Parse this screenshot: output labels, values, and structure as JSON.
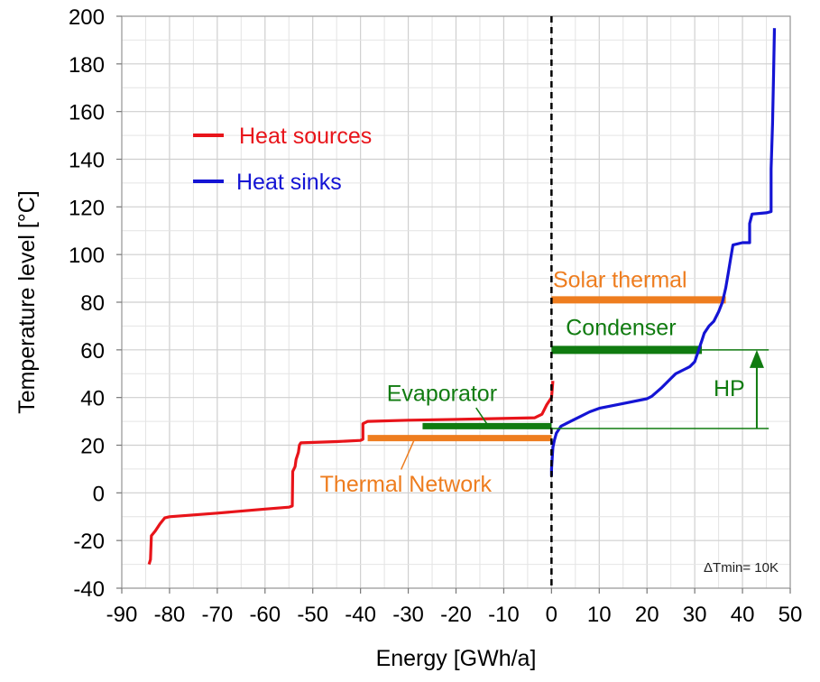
{
  "chart_data": {
    "type": "line",
    "xlabel": "Energy [GWh/a]",
    "ylabel": "Temperature level [°C]",
    "xlim": [
      -90,
      50
    ],
    "ylim": [
      -40,
      200
    ],
    "x_ticks": [
      -90,
      -80,
      -70,
      -60,
      -50,
      -40,
      -30,
      -20,
      -10,
      0,
      10,
      20,
      30,
      40,
      50
    ],
    "y_ticks": [
      -40,
      -20,
      0,
      20,
      40,
      60,
      80,
      100,
      120,
      140,
      160,
      180,
      200
    ],
    "x_tick_labels": [
      "-90",
      "-80",
      "-70",
      "-60",
      "-50",
      "-40",
      "-30",
      "-20",
      "-10",
      "0",
      "10",
      "20",
      "30",
      "40",
      "50"
    ],
    "y_tick_labels": [
      "-40",
      "-20",
      "0",
      "20",
      "40",
      "60",
      "80",
      "100",
      "120",
      "140",
      "160",
      "180",
      "200"
    ],
    "grid": true,
    "legend_position": "top-left",
    "series": [
      {
        "name": "Heat sources",
        "color": "#e8141a",
        "points": [
          [
            -84.3,
            -30
          ],
          [
            -84,
            -28
          ],
          [
            -83.8,
            -18
          ],
          [
            -83,
            -16
          ],
          [
            -82,
            -13
          ],
          [
            -81,
            -10.5
          ],
          [
            -80,
            -10
          ],
          [
            -70,
            -8.5
          ],
          [
            -60,
            -6.8
          ],
          [
            -55,
            -6
          ],
          [
            -54.3,
            -5.5
          ],
          [
            -54.2,
            9
          ],
          [
            -53.7,
            11
          ],
          [
            -53.5,
            14
          ],
          [
            -53,
            17
          ],
          [
            -52.8,
            20
          ],
          [
            -52.5,
            21
          ],
          [
            -45,
            21.5
          ],
          [
            -40,
            22
          ],
          [
            -39.5,
            22.5
          ],
          [
            -39.5,
            29
          ],
          [
            -38.5,
            30
          ],
          [
            -30,
            30.5
          ],
          [
            -15,
            31
          ],
          [
            -3.5,
            31.5
          ],
          [
            -2,
            33
          ],
          [
            -1,
            37
          ],
          [
            0,
            40
          ],
          [
            0.3,
            47
          ]
        ]
      },
      {
        "name": "Heat sinks",
        "color": "#1414d4",
        "points": [
          [
            0,
            7
          ],
          [
            0,
            10
          ],
          [
            0.3,
            19
          ],
          [
            0.6,
            22
          ],
          [
            1,
            25
          ],
          [
            2,
            28
          ],
          [
            4,
            30
          ],
          [
            6,
            32
          ],
          [
            8,
            34
          ],
          [
            10,
            35.5
          ],
          [
            15,
            37.5
          ],
          [
            20,
            39.5
          ],
          [
            21,
            40.5
          ],
          [
            23,
            44
          ],
          [
            25,
            48
          ],
          [
            26,
            50
          ],
          [
            28,
            52
          ],
          [
            29,
            53
          ],
          [
            30,
            55
          ],
          [
            30.5,
            58
          ],
          [
            31,
            61
          ],
          [
            31.5,
            64
          ],
          [
            32,
            67
          ],
          [
            33,
            70
          ],
          [
            34,
            72
          ],
          [
            35,
            76
          ],
          [
            35.8,
            80
          ],
          [
            36.5,
            86
          ],
          [
            37,
            92
          ],
          [
            37.5,
            98
          ],
          [
            38,
            104
          ],
          [
            40,
            105
          ],
          [
            41.5,
            105
          ],
          [
            41.5,
            113
          ],
          [
            42,
            117
          ],
          [
            45,
            117.5
          ],
          [
            46,
            118
          ],
          [
            46,
            136
          ],
          [
            46.3,
            155
          ],
          [
            46.5,
            175
          ],
          [
            46.7,
            195
          ]
        ]
      }
    ],
    "legend": [
      {
        "name": "Heat sources",
        "color": "#e8141a"
      },
      {
        "name": "Heat sinks",
        "color": "#1414d4"
      }
    ],
    "bars": [
      {
        "label": "Solar thermal",
        "color": "#ee7d1f",
        "x0": 0,
        "x1": 36.5,
        "y": 81
      },
      {
        "label": "Condenser",
        "color": "#107b10",
        "x0": 0,
        "x1": 31.5,
        "y": 60
      },
      {
        "label": "Evaporator",
        "color": "#107b10",
        "x0": -27,
        "x1": 0,
        "y": 28
      },
      {
        "label": "Thermal Network",
        "color": "#ee7d1f",
        "x0": -38.5,
        "x1": 0,
        "y": 23
      }
    ],
    "hp_annotation": {
      "label": "HP",
      "color": "#107b10",
      "x": 43,
      "y_low": 27,
      "y_high": 60
    },
    "note": "ΔTmin= 10K"
  }
}
